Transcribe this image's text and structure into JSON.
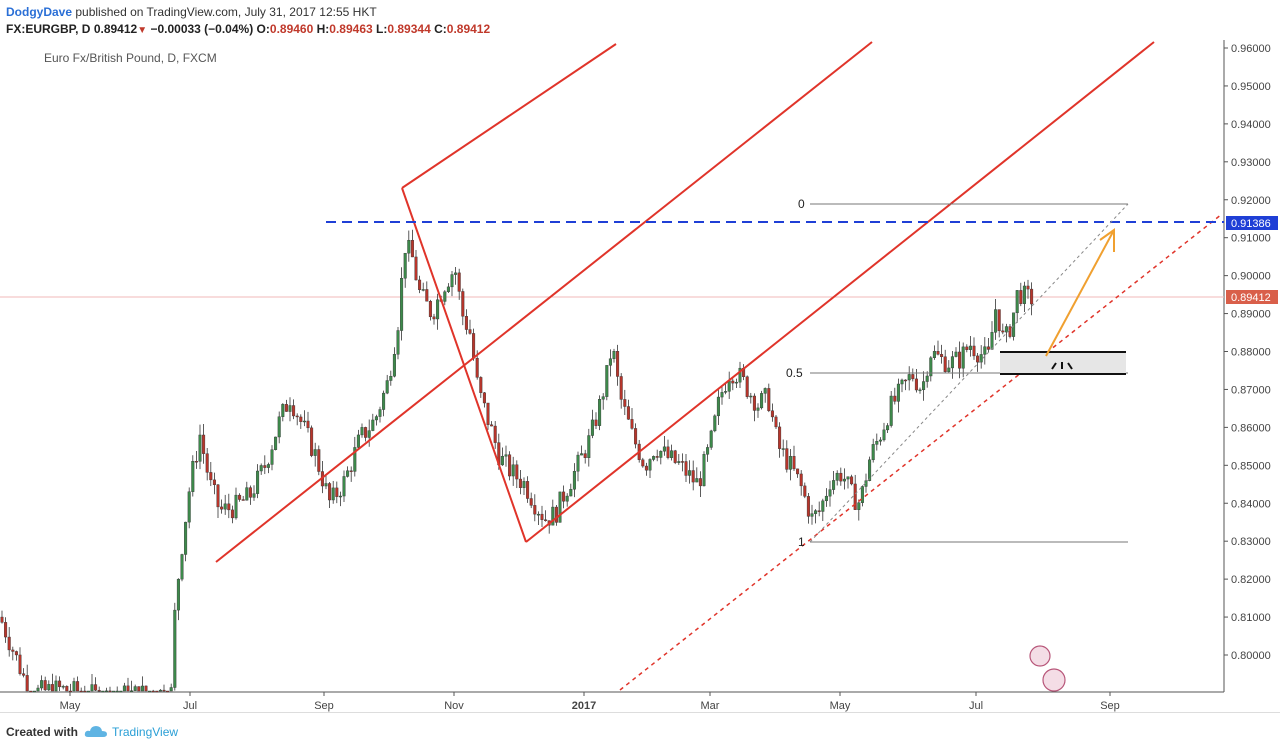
{
  "header": {
    "author": "DodgyDave",
    "published": " published on TradingView.com, July 31, 2017 12:55 HKT",
    "symbol": "FX:EURGBP, D",
    "last": "0.89412",
    "change": "−0.00033 (−0.04%)",
    "o_label": "O:",
    "o": "0.89460",
    "h_label": "H:",
    "h": "0.89463",
    "l_label": "L:",
    "l": "0.89344",
    "c_label": "C:",
    "c": "0.89412"
  },
  "footer": {
    "created_with": "Created with",
    "brand": "TradingView"
  },
  "chart_data": {
    "type": "candlestick",
    "title": "Euro Fx/British Pound, D, FXCM",
    "y_ticks": [
      "0.96000",
      "0.95000",
      "0.94000",
      "0.93000",
      "0.92000",
      "0.91000",
      "0.90000",
      "0.89000",
      "0.88000",
      "0.87000",
      "0.86000",
      "0.85000",
      "0.84000",
      "0.83000",
      "0.82000",
      "0.81000",
      "0.80000"
    ],
    "x_ticks": [
      "May",
      "Jul",
      "Sep",
      "Nov",
      "2017",
      "Mar",
      "May",
      "Jul",
      "Sep"
    ],
    "ylim": [
      0.79,
      0.962
    ],
    "price_label": "0.89412",
    "target_label": "0.91386",
    "fib_labels": [
      "0",
      "0.5",
      "1"
    ],
    "close_path": [
      [
        0,
        0.81
      ],
      [
        15,
        0.8
      ],
      [
        30,
        0.79
      ],
      [
        60,
        0.791
      ],
      [
        100,
        0.789
      ],
      [
        150,
        0.79
      ],
      [
        172,
        0.79
      ],
      [
        175,
        0.812
      ],
      [
        180,
        0.825
      ],
      [
        190,
        0.845
      ],
      [
        200,
        0.858
      ],
      [
        210,
        0.845
      ],
      [
        220,
        0.838
      ],
      [
        235,
        0.839
      ],
      [
        250,
        0.842
      ],
      [
        265,
        0.85
      ],
      [
        280,
        0.862
      ],
      [
        290,
        0.868
      ],
      [
        300,
        0.862
      ],
      [
        315,
        0.853
      ],
      [
        330,
        0.84
      ],
      [
        345,
        0.846
      ],
      [
        360,
        0.857
      ],
      [
        375,
        0.862
      ],
      [
        388,
        0.872
      ],
      [
        398,
        0.888
      ],
      [
        405,
        0.908
      ],
      [
        412,
        0.905
      ],
      [
        420,
        0.895
      ],
      [
        432,
        0.89
      ],
      [
        445,
        0.898
      ],
      [
        455,
        0.902
      ],
      [
        462,
        0.89
      ],
      [
        470,
        0.885
      ],
      [
        478,
        0.87
      ],
      [
        488,
        0.862
      ],
      [
        500,
        0.852
      ],
      [
        512,
        0.848
      ],
      [
        525,
        0.845
      ],
      [
        535,
        0.84
      ],
      [
        545,
        0.836
      ],
      [
        555,
        0.837
      ],
      [
        565,
        0.843
      ],
      [
        578,
        0.85
      ],
      [
        590,
        0.857
      ],
      [
        600,
        0.866
      ],
      [
        608,
        0.875
      ],
      [
        612,
        0.882
      ],
      [
        620,
        0.868
      ],
      [
        632,
        0.858
      ],
      [
        645,
        0.85
      ],
      [
        655,
        0.855
      ],
      [
        668,
        0.852
      ],
      [
        680,
        0.85
      ],
      [
        690,
        0.847
      ],
      [
        698,
        0.845
      ],
      [
        710,
        0.855
      ],
      [
        720,
        0.868
      ],
      [
        730,
        0.875
      ],
      [
        738,
        0.874
      ],
      [
        748,
        0.87
      ],
      [
        758,
        0.866
      ],
      [
        768,
        0.868
      ],
      [
        778,
        0.855
      ],
      [
        790,
        0.85
      ],
      [
        800,
        0.845
      ],
      [
        812,
        0.836
      ],
      [
        820,
        0.838
      ],
      [
        830,
        0.846
      ],
      [
        842,
        0.848
      ],
      [
        852,
        0.842
      ],
      [
        860,
        0.84
      ],
      [
        870,
        0.852
      ],
      [
        880,
        0.858
      ],
      [
        890,
        0.865
      ],
      [
        902,
        0.87
      ],
      [
        912,
        0.874
      ],
      [
        922,
        0.87
      ],
      [
        930,
        0.88
      ],
      [
        940,
        0.878
      ],
      [
        950,
        0.877
      ],
      [
        960,
        0.878
      ],
      [
        970,
        0.882
      ],
      [
        978,
        0.88
      ],
      [
        988,
        0.878
      ],
      [
        996,
        0.892
      ],
      [
        1004,
        0.882
      ],
      [
        1012,
        0.888
      ],
      [
        1018,
        0.896
      ],
      [
        1026,
        0.894
      ],
      [
        1035,
        0.894
      ]
    ]
  }
}
